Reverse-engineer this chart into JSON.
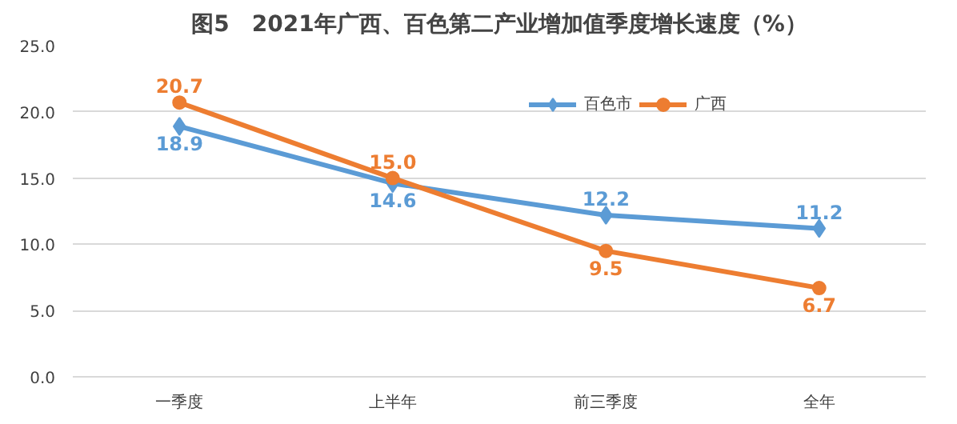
{
  "chart_data": {
    "type": "line",
    "title": "图5　2021年广西、百色第二产业增加值季度增长速度（%）",
    "categories": [
      "一季度",
      "上半年",
      "前三季度",
      "全年"
    ],
    "series": [
      {
        "name": "百色市",
        "color": "#5b9bd5",
        "marker": "diamond",
        "values": [
          18.9,
          14.6,
          12.2,
          11.2
        ],
        "value_labels": [
          "18.9",
          "14.6",
          "12.2",
          "11.2"
        ]
      },
      {
        "name": "广西",
        "color": "#ed7d31",
        "marker": "circle",
        "values": [
          20.7,
          15.0,
          9.5,
          6.7
        ],
        "value_labels": [
          "20.7",
          "15.0",
          "9.5",
          "6.7"
        ]
      }
    ],
    "ylim": [
      0,
      25
    ],
    "yticks": [
      {
        "value": 0,
        "label": "0.0"
      },
      {
        "value": 5,
        "label": "5.0"
      },
      {
        "value": 10,
        "label": "10.0"
      },
      {
        "value": 15,
        "label": "15.0"
      },
      {
        "value": 20,
        "label": "20.0"
      },
      {
        "value": 25,
        "label": "25.0"
      }
    ],
    "grid": "y",
    "legend": "top right",
    "line_style": "solid"
  }
}
